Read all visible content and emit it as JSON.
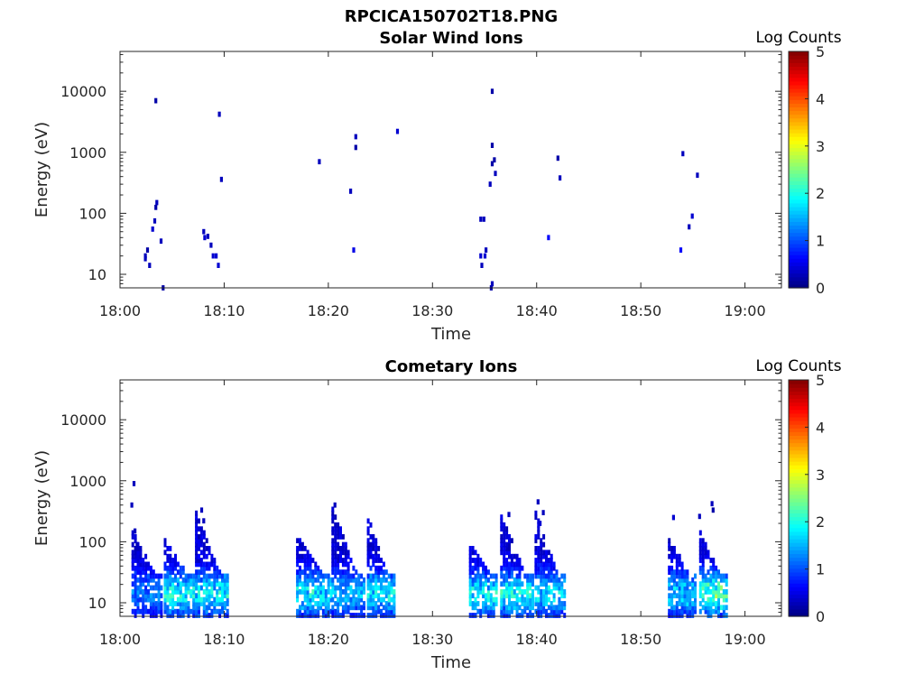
{
  "figure": {
    "title": "RPCICA150702T18.PNG"
  },
  "colorbar": {
    "title": "Log Counts",
    "ticks": [
      "0",
      "1",
      "2",
      "3",
      "4",
      "5"
    ],
    "range": [
      0,
      5
    ],
    "colormap": "jet"
  },
  "axes_style": {
    "axis_color": "#262626",
    "panel_bg": "#ffffff"
  },
  "chart_data": [
    {
      "type": "heatmap",
      "title": "Solar Wind Ions",
      "xlabel": "Time",
      "ylabel": "Energy (eV)",
      "x_ticks": [
        "18:00",
        "18:10",
        "18:20",
        "18:30",
        "18:40",
        "18:50",
        "19:00"
      ],
      "x_range_minutes": [
        0,
        63.5
      ],
      "y_ticks": [
        "10",
        "100",
        "1000",
        "10000"
      ],
      "y_scale": "log",
      "y_range": [
        6,
        45000
      ],
      "grid": false,
      "cells": [
        [
          2.3,
          20,
          0.3
        ],
        [
          2.3,
          18,
          0.3
        ],
        [
          2.5,
          25,
          0.2
        ],
        [
          2.7,
          14,
          0.3
        ],
        [
          3.0,
          55,
          0.4
        ],
        [
          3.2,
          75,
          0.3
        ],
        [
          3.3,
          125,
          0.2
        ],
        [
          3.4,
          150,
          0.3
        ],
        [
          3.8,
          35,
          0.3
        ],
        [
          4.0,
          6,
          0.2
        ],
        [
          3.3,
          7000,
          0.2
        ],
        [
          7.9,
          50,
          0.3
        ],
        [
          8.0,
          40,
          0.4
        ],
        [
          8.3,
          42,
          0.3
        ],
        [
          8.6,
          30,
          0.3
        ],
        [
          8.8,
          20,
          0.4
        ],
        [
          9.1,
          20,
          0.4
        ],
        [
          9.3,
          14,
          0.4
        ],
        [
          9.4,
          4200,
          0.3
        ],
        [
          9.6,
          360,
          0.3
        ],
        [
          19.0,
          700,
          0.3
        ],
        [
          22.0,
          230,
          0.3
        ],
        [
          22.3,
          25,
          0.5
        ],
        [
          22.5,
          1800,
          0.3
        ],
        [
          22.5,
          1200,
          0.2
        ],
        [
          26.5,
          2200,
          0.4
        ],
        [
          34.5,
          80,
          0.3
        ],
        [
          34.8,
          80,
          0.3
        ],
        [
          34.5,
          20,
          0.4
        ],
        [
          34.6,
          14,
          0.3
        ],
        [
          34.9,
          20,
          0.4
        ],
        [
          35.0,
          25,
          0.3
        ],
        [
          35.5,
          6,
          0.2
        ],
        [
          35.6,
          7,
          0.3
        ],
        [
          35.6,
          10000,
          0.2
        ],
        [
          35.6,
          1300,
          0.2
        ],
        [
          35.6,
          650,
          0.2
        ],
        [
          35.8,
          750,
          0.2
        ],
        [
          35.9,
          450,
          0.3
        ],
        [
          35.4,
          300,
          0.3
        ],
        [
          41.0,
          40,
          0.6
        ],
        [
          41.9,
          800,
          0.2
        ],
        [
          42.1,
          380,
          0.3
        ],
        [
          53.7,
          25,
          0.6
        ],
        [
          53.9,
          950,
          0.3
        ],
        [
          54.5,
          60,
          0.3
        ],
        [
          54.8,
          90,
          0.4
        ],
        [
          55.3,
          420,
          0.3
        ]
      ]
    },
    {
      "type": "heatmap",
      "title": "Cometary Ions",
      "xlabel": "Time",
      "ylabel": "Energy (eV)",
      "x_ticks": [
        "18:00",
        "18:10",
        "18:20",
        "18:30",
        "18:40",
        "18:50",
        "19:00"
      ],
      "x_range_minutes": [
        0,
        63.5
      ],
      "y_ticks": [
        "10",
        "100",
        "1000",
        "10000"
      ],
      "y_scale": "log",
      "y_range": [
        6,
        45000
      ],
      "grid": false,
      "bursts": [
        {
          "t": 2.5,
          "w": 2.8,
          "hi": 150,
          "peak": 0.9
        },
        {
          "t": 5.7,
          "w": 3.0,
          "hi": 120,
          "peak": 1.6
        },
        {
          "t": 8.7,
          "w": 3.0,
          "hi": 300,
          "peak": 1.5
        },
        {
          "t": 18.5,
          "w": 3.2,
          "hi": 130,
          "peak": 1.5
        },
        {
          "t": 21.8,
          "w": 3.0,
          "hi": 380,
          "peak": 1.2
        },
        {
          "t": 25.0,
          "w": 2.6,
          "hi": 250,
          "peak": 1.5
        },
        {
          "t": 34.8,
          "w": 2.6,
          "hi": 90,
          "peak": 1.5
        },
        {
          "t": 38.0,
          "w": 3.0,
          "hi": 270,
          "peak": 1.6
        },
        {
          "t": 41.2,
          "w": 2.8,
          "hi": 300,
          "peak": 1.4
        },
        {
          "t": 53.8,
          "w": 2.4,
          "hi": 120,
          "peak": 1.3
        },
        {
          "t": 56.8,
          "w": 2.4,
          "hi": 140,
          "peak": 1.9
        }
      ],
      "cells": [
        [
          1.2,
          900,
          0.3
        ],
        [
          1.0,
          400,
          0.3
        ],
        [
          1.3,
          150,
          0.3
        ],
        [
          1.5,
          90,
          0.3
        ],
        [
          7.7,
          330,
          0.3
        ],
        [
          7.9,
          220,
          0.3
        ],
        [
          20.5,
          400,
          0.3
        ],
        [
          40.0,
          450,
          0.3
        ],
        [
          53.0,
          250,
          0.4
        ],
        [
          55.5,
          260,
          0.3
        ],
        [
          56.7,
          420,
          0.3
        ],
        [
          56.8,
          330,
          0.2
        ],
        [
          37.2,
          280,
          0.3
        ],
        [
          40.5,
          300,
          0.3
        ],
        [
          40.2,
          200,
          0.4
        ]
      ]
    }
  ]
}
